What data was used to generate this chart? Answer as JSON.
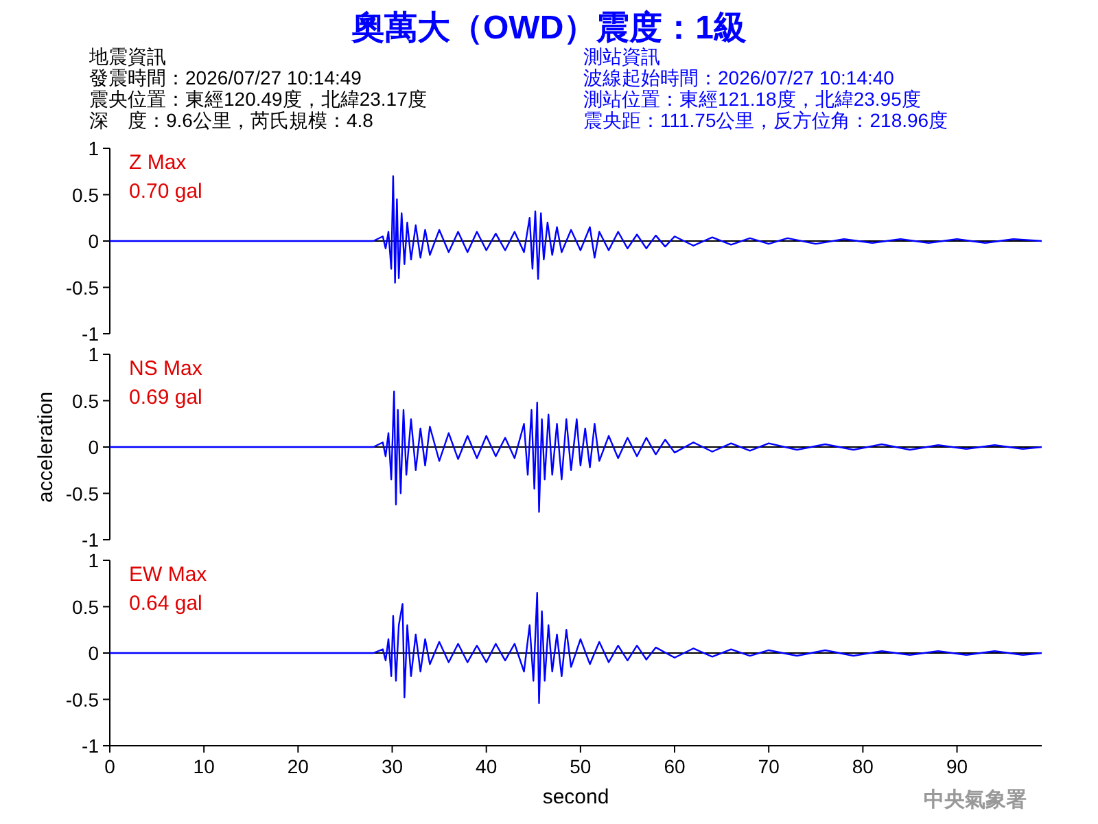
{
  "chart_data": [
    {
      "type": "line",
      "title": "奧萬大（OWD）震度：1級",
      "xlim": [
        0,
        99
      ],
      "ylim": [
        -1,
        1
      ],
      "yticks": [
        -1,
        -0.5,
        0,
        0.5,
        1
      ],
      "tick_labels": "y",
      "ref_lines": [
        {
          "axis": "y",
          "value": 0,
          "color": "#000000"
        }
      ],
      "annotations": [
        "Z Max",
        "0.70 gal",
        "地震資訊",
        "發震時間：2026/07/27 10:14:49",
        "震央位置：東經120.49度，北緯23.17度",
        "深　度：9.6公里，芮氏規模：4.8",
        "測站資訊",
        "波線起始時間：2026/07/27 10:14:40",
        "測站位置：東經121.18度，北緯23.95度",
        "震央距：111.75公里，反方位角：218.96度"
      ],
      "series": [
        {
          "color": "#0000ff",
          "x": [
            0,
            28,
            29,
            29.3,
            29.6,
            29.9,
            30.1,
            30.3,
            30.5,
            30.7,
            31,
            31.3,
            31.6,
            32,
            32.5,
            33,
            33.5,
            34,
            35,
            36,
            37,
            38,
            39,
            40,
            41,
            42,
            43,
            44,
            44.6,
            44.9,
            45.2,
            45.5,
            45.8,
            46.1,
            46.5,
            47,
            47.5,
            48,
            49,
            50,
            51,
            51.5,
            52,
            53,
            54,
            55,
            56,
            57,
            58,
            59,
            60,
            62,
            64,
            66,
            68,
            70,
            72,
            75,
            78,
            81,
            84,
            87,
            90,
            93,
            96,
            99
          ],
          "values": [
            0,
            0,
            0.05,
            -0.08,
            0.1,
            -0.3,
            0.7,
            -0.45,
            0.45,
            -0.4,
            0.3,
            -0.25,
            0.2,
            -0.2,
            0.17,
            -0.18,
            0.12,
            -0.15,
            0.12,
            -0.12,
            0.1,
            -0.12,
            0.1,
            -0.1,
            0.08,
            -0.1,
            0.1,
            -0.12,
            0.25,
            -0.3,
            0.32,
            -0.41,
            0.3,
            -0.2,
            0.2,
            -0.15,
            0.15,
            -0.12,
            0.12,
            -0.1,
            0.15,
            -0.18,
            0.1,
            -0.1,
            0.1,
            -0.08,
            0.07,
            -0.08,
            0.06,
            -0.06,
            0.05,
            -0.05,
            0.04,
            -0.04,
            0.03,
            -0.03,
            0.03,
            -0.03,
            0.02,
            -0.02,
            0.02,
            -0.02,
            0.02,
            -0.02,
            0.02,
            0
          ]
        }
      ]
    },
    {
      "type": "line",
      "ylabel": "acceleration",
      "xlim": [
        0,
        99
      ],
      "ylim": [
        -1,
        1
      ],
      "yticks": [
        -1,
        -0.5,
        0,
        0.5,
        1
      ],
      "tick_labels": "y",
      "ref_lines": [
        {
          "axis": "y",
          "value": 0,
          "color": "#000000"
        }
      ],
      "annotations": [
        "NS Max",
        "0.69 gal"
      ],
      "series": [
        {
          "color": "#0000ff",
          "x": [
            0,
            28,
            29,
            29.3,
            29.6,
            29.9,
            30.2,
            30.4,
            30.6,
            30.9,
            31.2,
            31.5,
            32,
            32.5,
            33,
            33.5,
            34,
            35,
            36,
            37,
            38,
            39,
            40,
            41,
            42,
            43,
            44,
            44.4,
            44.8,
            45.1,
            45.4,
            45.6,
            45.9,
            46.2,
            46.6,
            47,
            47.5,
            48,
            48.5,
            49,
            49.6,
            50,
            50.5,
            51,
            51.5,
            52,
            53,
            54,
            55,
            56,
            57,
            58,
            59,
            60,
            62,
            64,
            66,
            68,
            70,
            73,
            76,
            79,
            82,
            85,
            88,
            91,
            94,
            97,
            99
          ],
          "values": [
            0,
            0,
            0.05,
            -0.1,
            0.15,
            -0.35,
            0.6,
            -0.62,
            0.4,
            -0.5,
            0.4,
            -0.3,
            0.3,
            -0.25,
            0.2,
            -0.2,
            0.22,
            -0.15,
            0.15,
            -0.13,
            0.12,
            -0.12,
            0.12,
            -0.1,
            0.1,
            -0.12,
            0.25,
            -0.3,
            0.4,
            -0.45,
            0.48,
            -0.7,
            0.3,
            -0.35,
            0.35,
            -0.3,
            0.25,
            -0.35,
            0.3,
            -0.25,
            0.3,
            -0.2,
            0.2,
            -0.22,
            0.25,
            -0.15,
            0.12,
            -0.12,
            0.1,
            -0.1,
            0.1,
            -0.08,
            0.08,
            -0.06,
            0.05,
            -0.05,
            0.04,
            -0.04,
            0.04,
            -0.03,
            0.03,
            -0.03,
            0.03,
            -0.03,
            0.02,
            -0.02,
            0.02,
            -0.02,
            0
          ]
        }
      ]
    },
    {
      "type": "line",
      "xlabel": "second",
      "xlim": [
        0,
        99
      ],
      "xticks": [
        0,
        10,
        20,
        30,
        40,
        50,
        60,
        70,
        80,
        90
      ],
      "ylim": [
        -1,
        1
      ],
      "yticks": [
        -1,
        -0.5,
        0,
        0.5,
        1
      ],
      "ref_lines": [
        {
          "axis": "y",
          "value": 0,
          "color": "#000000"
        }
      ],
      "annotations": [
        "EW Max",
        "0.64 gal",
        "中央氣象署"
      ],
      "series": [
        {
          "color": "#0000ff",
          "x": [
            0,
            28,
            29,
            29.3,
            29.6,
            29.9,
            30.1,
            30.4,
            30.7,
            31.1,
            31.3,
            31.6,
            32,
            32.5,
            33,
            33.5,
            34,
            35,
            36,
            37,
            38,
            39,
            40,
            41,
            42,
            43,
            44,
            44.6,
            45,
            45.4,
            45.6,
            45.9,
            46.2,
            46.6,
            47,
            47.5,
            48,
            48.5,
            49,
            50,
            51,
            52,
            53,
            54,
            55,
            56,
            57,
            58,
            60,
            62,
            64,
            66,
            68,
            70,
            73,
            76,
            79,
            82,
            85,
            88,
            91,
            94,
            97,
            99
          ],
          "values": [
            0,
            0,
            0.04,
            -0.08,
            0.15,
            -0.25,
            0.4,
            -0.3,
            0.3,
            0.53,
            -0.48,
            0.3,
            -0.25,
            0.2,
            -0.2,
            0.15,
            -0.12,
            0.12,
            -0.1,
            0.1,
            -0.1,
            0.08,
            -0.1,
            0.1,
            -0.08,
            0.1,
            -0.2,
            0.3,
            -0.3,
            0.65,
            -0.54,
            0.45,
            -0.3,
            0.3,
            -0.2,
            0.2,
            -0.25,
            0.25,
            -0.15,
            0.15,
            -0.12,
            0.12,
            -0.1,
            0.08,
            -0.08,
            0.08,
            -0.07,
            0.06,
            -0.05,
            0.05,
            -0.04,
            0.04,
            -0.03,
            0.03,
            -0.03,
            0.03,
            -0.03,
            0.02,
            -0.02,
            0.02,
            -0.02,
            0.02,
            -0.02,
            0
          ]
        }
      ]
    }
  ]
}
